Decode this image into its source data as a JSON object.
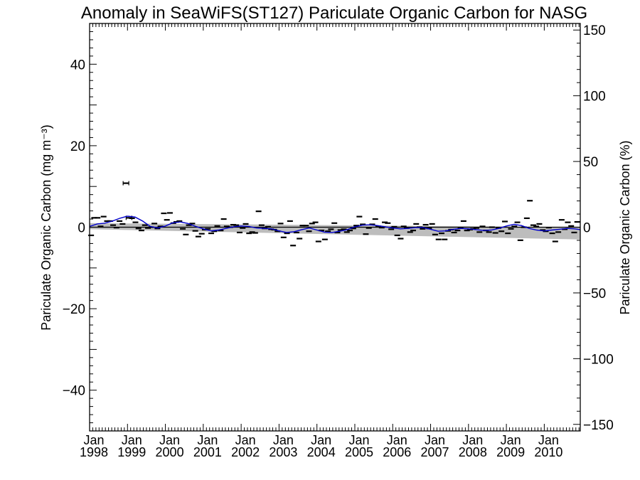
{
  "chart_data": {
    "type": "line",
    "title": "Anomaly in SeaWiFS(ST127) Pariculate Organic Carbon for NASG",
    "ylabel_left": "Pariculate Organic Carbon (mg m⁻³)",
    "ylabel_right": "Pariculate Organic Carbon (%)",
    "xlim": [
      1998.0,
      2010.95
    ],
    "ylim_left": [
      -50,
      50
    ],
    "ylim_right": [
      -155,
      155
    ],
    "yticks_left": [
      -40,
      -20,
      0,
      20,
      40
    ],
    "yticks_right": [
      -150,
      -100,
      -50,
      0,
      50,
      100,
      150
    ],
    "xticks": [
      {
        "x": 1998,
        "line1": "Jan",
        "line2": "1998"
      },
      {
        "x": 1999,
        "line1": "Jan",
        "line2": "1999"
      },
      {
        "x": 2000,
        "line1": "Jan",
        "line2": "2000"
      },
      {
        "x": 2001,
        "line1": "Jan",
        "line2": "2001"
      },
      {
        "x": 2002,
        "line1": "Jan",
        "line2": "2002"
      },
      {
        "x": 2003,
        "line1": "Jan",
        "line2": "2003"
      },
      {
        "x": 2004,
        "line1": "Jan",
        "line2": "2004"
      },
      {
        "x": 2005,
        "line1": "Jan",
        "line2": "2005"
      },
      {
        "x": 2006,
        "line1": "Jan",
        "line2": "2006"
      },
      {
        "x": 2007,
        "line1": "Jan",
        "line2": "2007"
      },
      {
        "x": 2008,
        "line1": "Jan",
        "line2": "2008"
      },
      {
        "x": 2009,
        "line1": "Jan",
        "line2": "2009"
      },
      {
        "x": 2010,
        "line1": "Jan",
        "line2": "2010"
      }
    ],
    "trend_band": {
      "start": [
        -0.5,
        1.0
      ],
      "end": [
        -3.0,
        0.0
      ]
    },
    "zero_line": 0,
    "monthly_anomalies": {
      "x": [
        1998.04,
        1998.12,
        1998.21,
        1998.29,
        1998.37,
        1998.46,
        1998.54,
        1998.62,
        1998.71,
        1998.79,
        1998.87,
        1998.96,
        1999.04,
        1999.12,
        1999.21,
        1999.29,
        1999.37,
        1999.46,
        1999.54,
        1999.62,
        1999.71,
        1999.79,
        1999.87,
        1999.96,
        2000.04,
        2000.12,
        2000.21,
        2000.29,
        2000.37,
        2000.46,
        2000.54,
        2000.62,
        2000.71,
        2000.79,
        2000.87,
        2000.96,
        2001.04,
        2001.12,
        2001.21,
        2001.29,
        2001.37,
        2001.46,
        2001.54,
        2001.62,
        2001.71,
        2001.79,
        2001.87,
        2001.96,
        2002.04,
        2002.12,
        2002.21,
        2002.29,
        2002.37,
        2002.46,
        2002.54,
        2002.62,
        2002.71,
        2002.79,
        2002.87,
        2002.96,
        2003.04,
        2003.12,
        2003.21,
        2003.29,
        2003.37,
        2003.46,
        2003.54,
        2003.62,
        2003.71,
        2003.79,
        2003.87,
        2003.96,
        2004.04,
        2004.12,
        2004.21,
        2004.29,
        2004.37,
        2004.46,
        2004.54,
        2004.62,
        2004.71,
        2004.79,
        2004.87,
        2004.96,
        2005.04,
        2005.12,
        2005.21,
        2005.29,
        2005.37,
        2005.46,
        2005.54,
        2005.62,
        2005.71,
        2005.79,
        2005.87,
        2005.96,
        2006.04,
        2006.12,
        2006.21,
        2006.29,
        2006.37,
        2006.46,
        2006.54,
        2006.62,
        2006.71,
        2006.79,
        2006.87,
        2006.96,
        2007.04,
        2007.12,
        2007.21,
        2007.29,
        2007.37,
        2007.46,
        2007.54,
        2007.62,
        2007.71,
        2007.79,
        2007.87,
        2007.96,
        2008.04,
        2008.12,
        2008.21,
        2008.29,
        2008.37,
        2008.46,
        2008.54,
        2008.62,
        2008.71,
        2008.79,
        2008.87,
        2008.96,
        2009.04,
        2009.12,
        2009.21,
        2009.29,
        2009.37,
        2009.46,
        2009.54,
        2009.62,
        2009.71,
        2009.79,
        2009.87,
        2009.96,
        2010.04,
        2010.12,
        2010.21,
        2010.29,
        2010.37,
        2010.46,
        2010.54,
        2010.62,
        2010.71,
        2010.79,
        2010.87
      ],
      "y": [
        -2.0,
        2.3,
        2.3,
        0.2,
        2.6,
        1.5,
        1.5,
        0.5,
        -0.1,
        1.5,
        0.8,
        10.8,
        2.3,
        2.2,
        1.2,
        -0.3,
        -0.8,
        0.5,
        -0.2,
        0.0,
        0.9,
        -0.3,
        0.2,
        3.4,
        1.8,
        3.5,
        1.0,
        1.3,
        1.5,
        -0.4,
        -1.8,
        0.5,
        0.9,
        -0.9,
        -2.3,
        -1.6,
        -0.6,
        -0.4,
        -1.5,
        -1.0,
        0.3,
        -0.8,
        2.0,
        0.2,
        0.0,
        0.6,
        0.5,
        -1.3,
        -0.2,
        0.8,
        -1.5,
        -1.2,
        -1.4,
        3.9,
        0.5,
        -0.3,
        0.1,
        -0.5,
        -0.6,
        -1.0,
        0.9,
        -2.5,
        -1.5,
        1.5,
        -4.5,
        -1.3,
        -2.8,
        0.4,
        0.4,
        -1.0,
        0.9,
        1.2,
        -3.5,
        -0.8,
        -3.0,
        -1.0,
        -0.5,
        1.0,
        -1.3,
        -0.7,
        -0.5,
        -1.2,
        -0.8,
        -0.3,
        0.4,
        2.6,
        0.7,
        -1.7,
        -0.2,
        0.7,
        2.0,
        0.2,
        -0.1,
        1.2,
        1.0,
        -0.5,
        0.1,
        -2.0,
        -2.8,
        0.2,
        -0.2,
        -1.2,
        -0.8,
        0.8,
        0.0,
        -0.4,
        0.6,
        -0.3,
        0.8,
        -1.8,
        -3.0,
        -1.5,
        -3.0,
        -0.9,
        -0.6,
        -1.3,
        -0.8,
        -0.1,
        1.5,
        -0.8,
        -0.6,
        -0.4,
        -0.2,
        -1.2,
        0.2,
        -0.8,
        -1.2,
        0.0,
        -1.4,
        -0.2,
        -1.0,
        1.4,
        -1.5,
        -0.4,
        0.2,
        1.2,
        -3.2,
        0.0,
        2.2,
        6.5,
        0.5,
        0.2,
        0.8,
        -0.7,
        -1.0,
        -0.1,
        -1.5,
        -3.5,
        -1.2,
        1.8,
        -0.5,
        1.2,
        0.3,
        -1.3,
        1.3
      ],
      "emphasized_errorbar_x": 1999.0
    },
    "smoothed_series": {
      "color": "#0000cc",
      "x": [
        1998.0,
        1998.2,
        1998.4,
        1998.6,
        1998.8,
        1999.0,
        1999.2,
        1999.4,
        1999.6,
        1999.8,
        2000.0,
        2000.2,
        2000.4,
        2000.6,
        2000.8,
        2001.0,
        2001.2,
        2001.4,
        2001.6,
        2001.8,
        2002.0,
        2002.2,
        2002.4,
        2002.6,
        2002.8,
        2003.0,
        2003.2,
        2003.4,
        2003.6,
        2003.8,
        2004.0,
        2004.2,
        2004.4,
        2004.6,
        2004.8,
        2005.0,
        2005.2,
        2005.4,
        2005.6,
        2005.8,
        2006.0,
        2006.2,
        2006.4,
        2006.6,
        2006.8,
        2007.0,
        2007.2,
        2007.4,
        2007.6,
        2007.8,
        2008.0,
        2008.2,
        2008.4,
        2008.6,
        2008.8,
        2009.0,
        2009.2,
        2009.4,
        2009.6,
        2009.8,
        2010.0,
        2010.2,
        2010.4,
        2010.6,
        2010.8,
        2010.95
      ],
      "y": [
        0.2,
        0.8,
        1.0,
        1.5,
        2.2,
        2.7,
        2.5,
        1.5,
        0.2,
        -0.2,
        0.3,
        1.1,
        1.3,
        0.9,
        0.2,
        -0.4,
        -0.9,
        -0.7,
        -0.3,
        0.1,
        0.3,
        0.2,
        -0.2,
        -0.3,
        -0.4,
        -0.9,
        -1.3,
        -1.1,
        -0.6,
        -0.2,
        -0.7,
        -1.2,
        -1.3,
        -1.0,
        -0.6,
        0.1,
        0.5,
        0.6,
        0.4,
        0.1,
        -0.2,
        -0.4,
        -0.3,
        -0.1,
        -0.1,
        -0.5,
        -1.0,
        -0.9,
        -0.5,
        -0.3,
        -0.4,
        -0.6,
        -0.8,
        -0.7,
        -0.3,
        0.3,
        0.7,
        0.4,
        -0.3,
        -0.7,
        -0.9,
        -0.7,
        -0.5,
        -0.3,
        -0.4,
        -0.6
      ]
    }
  }
}
